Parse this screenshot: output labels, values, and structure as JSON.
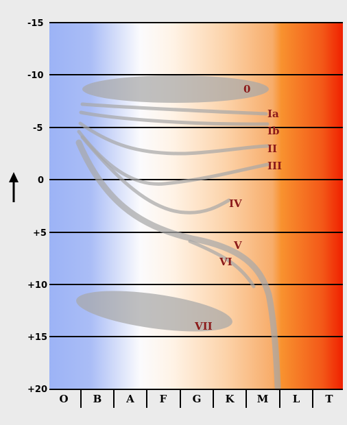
{
  "diagram": {
    "y_ticks": [
      "-15",
      "-10",
      "-5",
      "0",
      "+5",
      "+10",
      "+15",
      "+20"
    ],
    "spectral_classes": [
      "O",
      "B",
      "A",
      "F",
      "G",
      "K",
      "M",
      "L",
      "T"
    ],
    "luminosity_classes": [
      {
        "id": "0",
        "label": "0"
      },
      {
        "id": "ia",
        "label": "Ia"
      },
      {
        "id": "ib",
        "label": "Ib"
      },
      {
        "id": "ii",
        "label": "II"
      },
      {
        "id": "iii",
        "label": "III"
      },
      {
        "id": "iv",
        "label": "IV"
      },
      {
        "id": "v",
        "label": "V"
      },
      {
        "id": "vi",
        "label": "VI"
      },
      {
        "id": "vii",
        "label": "VII"
      }
    ],
    "arrow_glyph": "↑",
    "colors": {
      "blue": "#9db4f5",
      "white": "#ffffff",
      "orange": "#f9a45a",
      "red": "#ee2200",
      "label": "#8b1a1a",
      "band": "#a9a9a9"
    }
  }
}
